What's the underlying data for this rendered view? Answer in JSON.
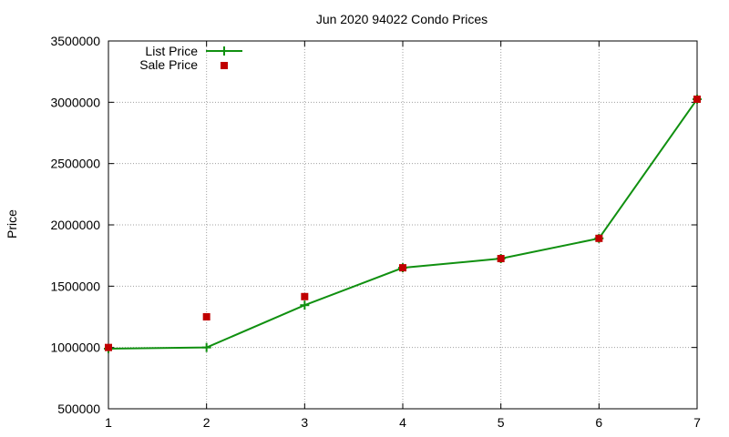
{
  "chart_data": {
    "type": "line",
    "title": "Jun 2020 94022 Condo Prices",
    "xlabel": "",
    "ylabel": "Price",
    "xlim": [
      1,
      7
    ],
    "ylim": [
      500000,
      3500000
    ],
    "xticks": [
      1,
      2,
      3,
      4,
      5,
      6,
      7
    ],
    "yticks": [
      500000,
      1000000,
      1500000,
      2000000,
      2500000,
      3000000,
      3500000
    ],
    "grid": true,
    "legend_position": "top-left",
    "series": [
      {
        "name": "List Price",
        "style": "line-with-plus-markers",
        "color": "#109010",
        "x": [
          1,
          2,
          3,
          4,
          5,
          6,
          7
        ],
        "y": [
          990000,
          1000000,
          1345000,
          1650000,
          1725000,
          1890000,
          3025000
        ]
      },
      {
        "name": "Sale Price",
        "style": "square-markers",
        "color": "#c00000",
        "x": [
          1,
          2,
          3,
          4,
          5,
          6,
          7
        ],
        "y": [
          1000000,
          1250000,
          1415000,
          1650000,
          1725000,
          1890000,
          3025000
        ]
      }
    ]
  }
}
